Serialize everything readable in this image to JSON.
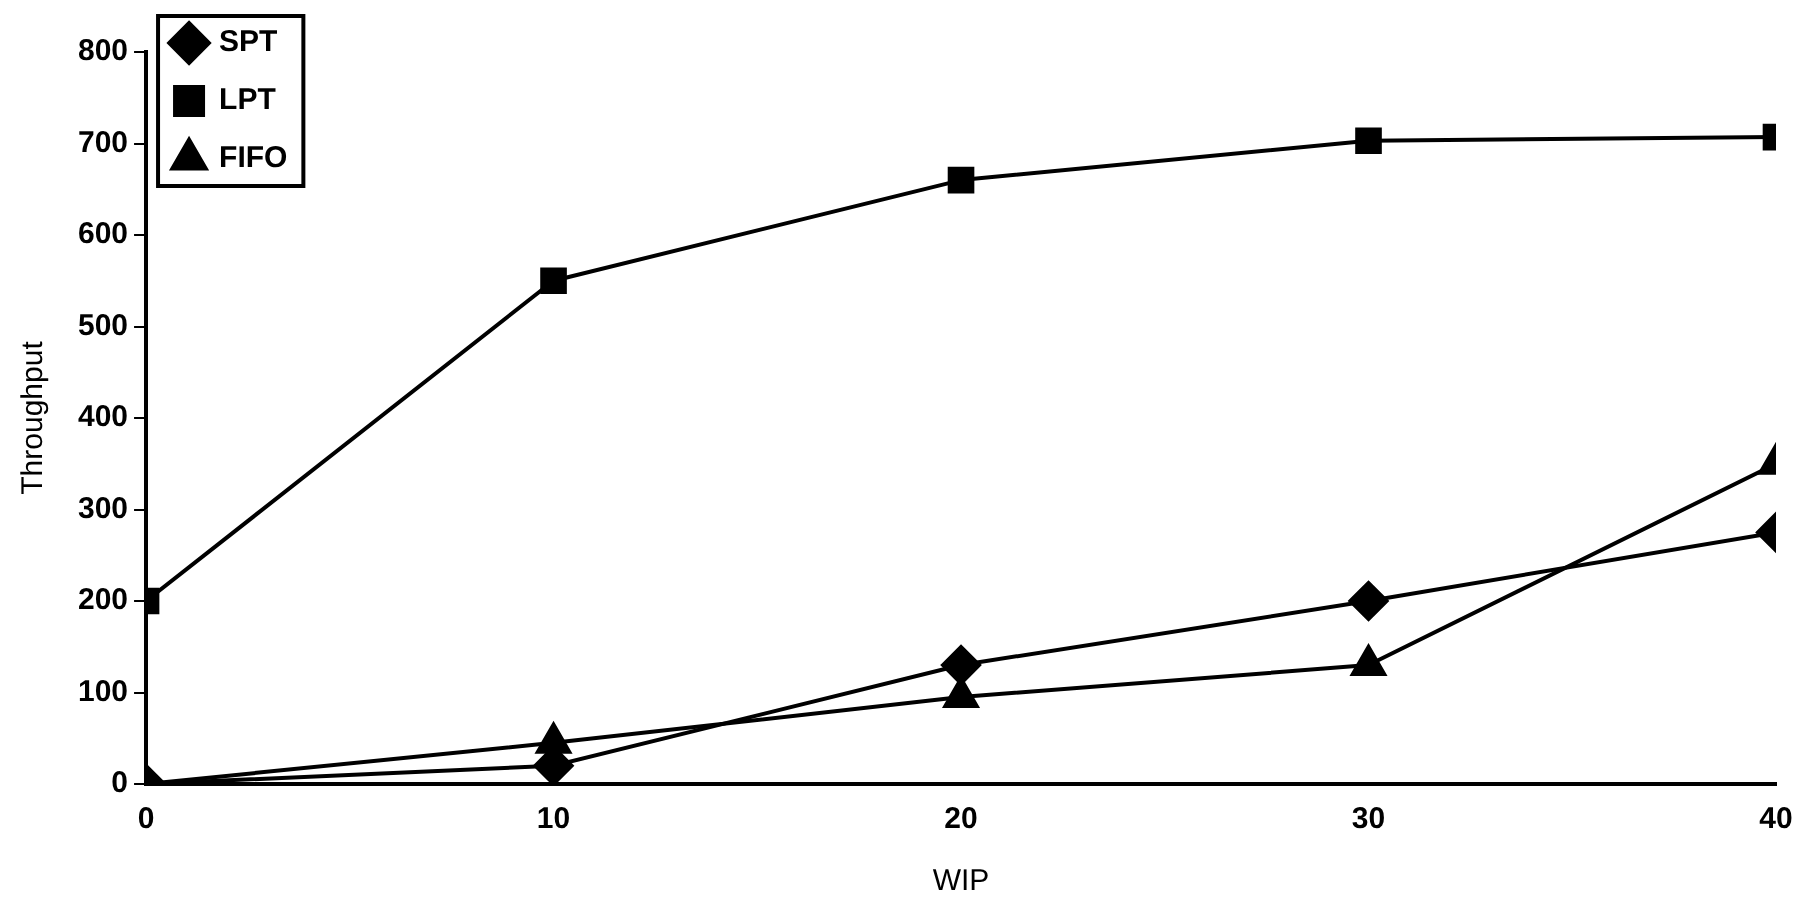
{
  "chart_data": {
    "type": "line",
    "xlabel": "WIP",
    "ylabel": "Throughput",
    "x": [
      0,
      10,
      20,
      30,
      40
    ],
    "series": [
      {
        "name": "SPT",
        "color": "#000000",
        "marker": "diamond",
        "values": [
          0,
          20,
          130,
          200,
          275
        ]
      },
      {
        "name": "LPT",
        "color": "#000000",
        "marker": "square",
        "values": [
          200,
          550,
          660,
          703,
          707
        ]
      },
      {
        "name": "FIFO",
        "color": "#000000",
        "marker": "triangle",
        "values": [
          0,
          45,
          95,
          130,
          350
        ]
      }
    ],
    "xlim": [
      0,
      40
    ],
    "xticks": [
      0,
      10,
      20,
      30,
      40
    ],
    "ylim": [
      0,
      800
    ],
    "yticks": [
      0,
      100,
      200,
      300,
      400,
      500,
      600,
      700,
      800
    ],
    "grid": false,
    "legend": "top left",
    "line_style": "solid"
  }
}
